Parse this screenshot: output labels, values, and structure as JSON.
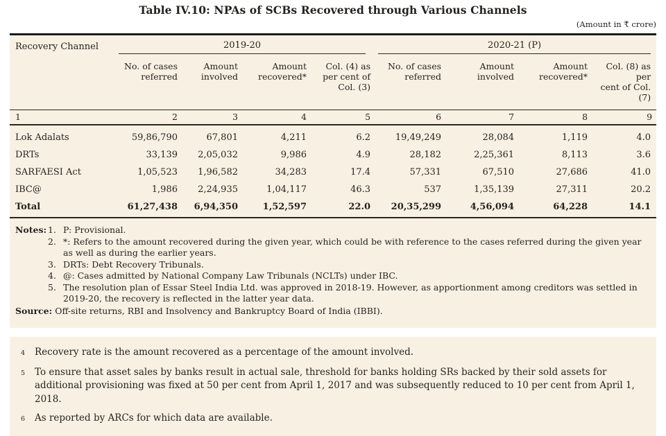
{
  "title": "Table IV.10: NPAs of SCBs Recovered through Various Channels",
  "unit_note": "(Amount in ₹ crore)",
  "colors": {
    "box_bg": "#f8f1e3",
    "text": "#262220",
    "rule": "#2a2522"
  },
  "table": {
    "channel_header": "Recovery Channel",
    "year_groups": [
      "2019-20",
      "2020-21 (P)"
    ],
    "sub_headers": [
      "No. of cases\nreferred",
      "Amount\ninvolved",
      "Amount\nrecovered*",
      "Col. (4) as\nper cent of\nCol. (3)",
      "No. of cases\nreferred",
      "Amount\ninvolved",
      "Amount\nrecovered*",
      "Col. (8) as per\ncent of Col. (7)"
    ],
    "col_numbers": [
      "1",
      "2",
      "3",
      "4",
      "5",
      "6",
      "7",
      "8",
      "9"
    ],
    "rows": [
      {
        "channel": "Lok Adalats",
        "values": [
          "59,86,790",
          "67,801",
          "4,211",
          "6.2",
          "19,49,249",
          "28,084",
          "1,119",
          "4.0"
        ]
      },
      {
        "channel": "DRTs",
        "values": [
          "33,139",
          "2,05,032",
          "9,986",
          "4.9",
          "28,182",
          "2,25,361",
          "8,113",
          "3.6"
        ]
      },
      {
        "channel": "SARFAESI Act",
        "values": [
          "1,05,523",
          "1,96,582",
          "34,283",
          "17.4",
          "57,331",
          "67,510",
          "27,686",
          "41.0"
        ]
      },
      {
        "channel": "IBC@",
        "values": [
          "1,986",
          "2,24,935",
          "1,04,117",
          "46.3",
          "537",
          "1,35,139",
          "27,311",
          "20.2"
        ]
      }
    ],
    "total_row": {
      "channel": "Total",
      "values": [
        "61,27,438",
        "6,94,350",
        "1,52,597",
        "22.0",
        "20,35,299",
        "4,56,094",
        "64,228",
        "14.1"
      ]
    }
  },
  "notes": {
    "label": "Notes:",
    "items": [
      {
        "num": "1.",
        "text": "P: Provisional."
      },
      {
        "num": "2.",
        "text": "*: Refers to the amount recovered during the given year, which could be with reference to the cases referred during the given year as well as during the earlier years."
      },
      {
        "num": "3.",
        "text": "DRTs: Debt Recovery Tribunals."
      },
      {
        "num": "4.",
        "text": "@: Cases admitted by National Company Law Tribunals (NCLTs) under IBC."
      },
      {
        "num": "5.",
        "text": "The resolution plan of Essar Steel India Ltd. was approved in 2018-19. However, as apportionment among creditors was settled in 2019-20, the recovery is reflected in the latter year data."
      }
    ]
  },
  "source": {
    "label": "Source:",
    "text": "Off-site returns, RBI and Insolvency and Bankruptcy Board of India (IBBI)."
  },
  "footnotes": [
    {
      "sup": "4",
      "text": "Recovery rate is the amount recovered as a percentage of the amount involved."
    },
    {
      "sup": "5",
      "text": "To ensure that asset sales by banks result in actual sale, threshold for banks holding SRs backed by their sold assets for additional provisioning was fixed at 50 per cent from April 1, 2017 and was subsequently reduced to 10 per cent from April 1, 2018."
    },
    {
      "sup": "6",
      "text": "As reported by ARCs for which data are available."
    }
  ]
}
